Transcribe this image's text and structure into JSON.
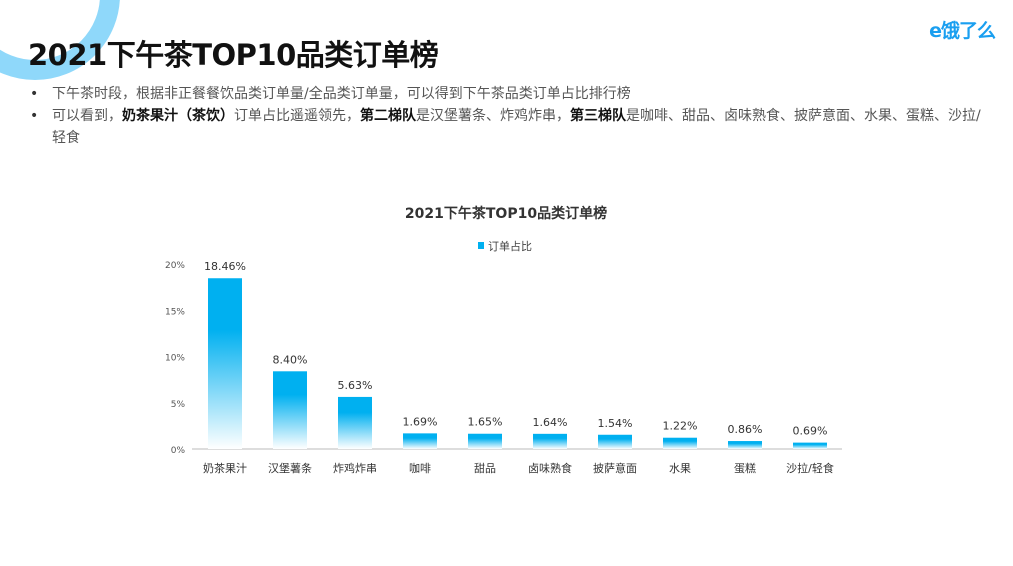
{
  "logo": "e饿了么",
  "title": "2021下午茶TOP10品类订单榜",
  "bullets": {
    "b1": "下午茶时段，根据非正餐餐饮品类订单量/全品类订单量，可以得到下午茶品类订单占比排行榜",
    "b2_a": "可以看到，",
    "b2_b": "奶茶果汁（茶饮）",
    "b2_c": "订单占比遥遥领先，",
    "b2_d": "第二梯队",
    "b2_e": "是汉堡薯条、炸鸡炸串，",
    "b2_f": "第三梯队",
    "b2_g": "是咖啡、甜品、卤味熟食、披萨意面、水果、蛋糕、沙拉/轻食"
  },
  "colors": {
    "bar_top": "#00b0f0",
    "bar_bottom": "#ffffff",
    "ring": "#8fd8fa",
    "logo": "#1a9ff0"
  },
  "chart_data": {
    "type": "bar",
    "title": "2021下午茶TOP10品类订单榜",
    "legend": {
      "position": "top",
      "label": "订单占比"
    },
    "categories": [
      "奶茶果汁",
      "汉堡薯条",
      "炸鸡炸串",
      "咖啡",
      "甜品",
      "卤味熟食",
      "披萨意面",
      "水果",
      "蛋糕",
      "沙拉/轻食"
    ],
    "series": [
      {
        "name": "订单占比",
        "values": [
          18.46,
          8.4,
          5.63,
          1.69,
          1.65,
          1.64,
          1.54,
          1.22,
          0.86,
          0.69
        ]
      }
    ],
    "data_labels": [
      "18.46%",
      "8.40%",
      "5.63%",
      "1.69%",
      "1.65%",
      "1.64%",
      "1.54%",
      "1.22%",
      "0.86%",
      "0.69%"
    ],
    "yticks": [
      "0%",
      "5%",
      "10%",
      "15%",
      "20%"
    ],
    "ylim": [
      0,
      20
    ],
    "grid": false
  }
}
